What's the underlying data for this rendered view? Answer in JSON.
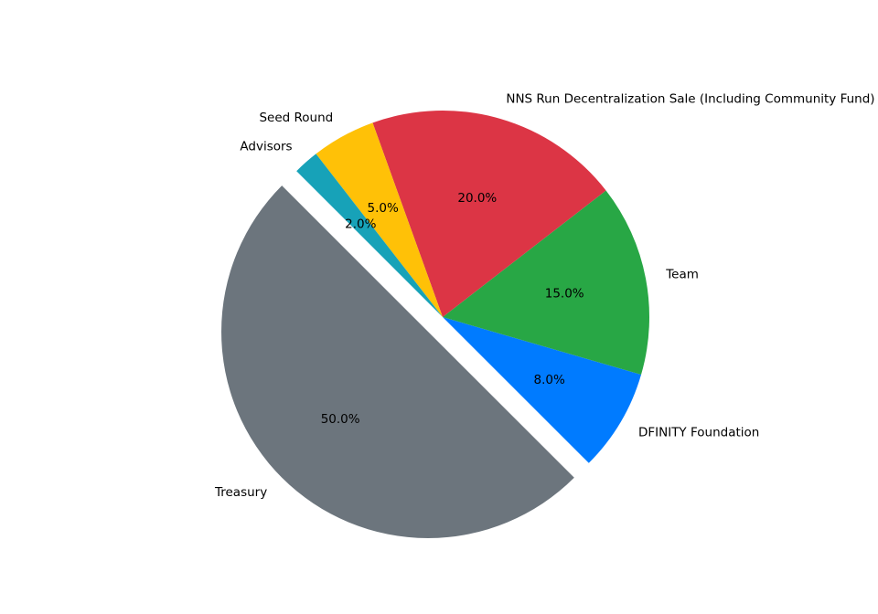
{
  "chart_data": {
    "type": "pie",
    "title": "",
    "start_angle_deg": 135,
    "direction": "counterclockwise",
    "slices": [
      {
        "label": "Treasury",
        "value": 50.0,
        "pct_label": "50.0%",
        "color": "#6c757d",
        "exploded": true
      },
      {
        "label": "DFINITY Foundation",
        "value": 8.0,
        "pct_label": "8.0%",
        "color": "#007bff",
        "exploded": false
      },
      {
        "label": "Team",
        "value": 15.0,
        "pct_label": "15.0%",
        "color": "#28a745",
        "exploded": false
      },
      {
        "label": "NNS Run Decentralization Sale (Including Community Fund)",
        "value": 20.0,
        "pct_label": "20.0%",
        "color": "#dc3545",
        "exploded": false
      },
      {
        "label": "Seed Round",
        "value": 5.0,
        "pct_label": "5.0%",
        "color": "#ffc107",
        "exploded": false
      },
      {
        "label": "Advisors",
        "value": 2.0,
        "pct_label": "2.0%",
        "color": "#17a2b8",
        "exploded": false
      }
    ]
  }
}
